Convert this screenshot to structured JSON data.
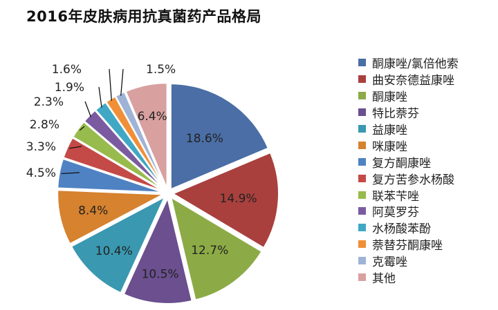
{
  "chart_data": {
    "type": "pie",
    "title": "2016年皮肤病用抗真菌药产品格局",
    "categories": [
      "酮康唑/氯倍他索",
      "曲安奈德益康唑",
      "酮康唑",
      "特比萘芬",
      "益康唑",
      "咪康唑",
      "复方酮康唑",
      "复方苦参水杨酸",
      "联苯苄唑",
      "阿莫罗芬",
      "水杨酸苯酚",
      "萘替芬酮康唑",
      "克霉唑",
      "其他"
    ],
    "values": [
      18.6,
      14.9,
      12.7,
      10.5,
      10.4,
      8.4,
      4.5,
      3.3,
      2.8,
      2.3,
      1.9,
      1.6,
      1.5,
      6.4
    ],
    "labels": [
      "18.6%",
      "14.9%",
      "12.7%",
      "10.5%",
      "10.4%",
      "8.4%",
      "4.5%",
      "3.3%",
      "2.8%",
      "2.3%",
      "1.9%",
      "1.6%",
      "1.5%",
      "6.4%"
    ],
    "colors": [
      "#4a6ea5",
      "#a9403d",
      "#8cab46",
      "#6b4f8f",
      "#3a98b0",
      "#d6822f",
      "#4f82c3",
      "#c44a47",
      "#97bb4c",
      "#7b5ba0",
      "#40a8c4",
      "#f08f38",
      "#9fb3d6",
      "#d9a0a0"
    ],
    "legend_position": "right",
    "exploded": true
  }
}
